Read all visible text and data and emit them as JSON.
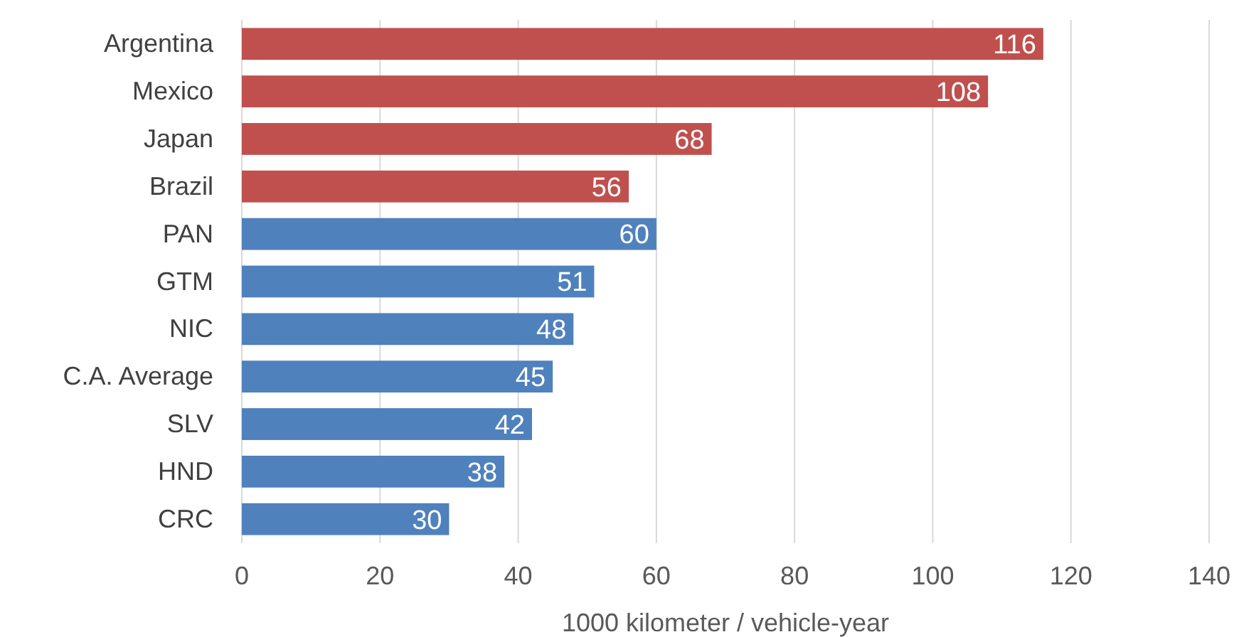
{
  "chart_data": {
    "type": "bar",
    "orientation": "horizontal",
    "xlabel": "1000 kilometer / vehicle-year",
    "categories": [
      "Argentina",
      "Mexico",
      "Japan",
      "Brazil",
      "PAN",
      "GTM",
      "NIC",
      "C.A. Average",
      "SLV",
      "HND",
      "CRC"
    ],
    "values": [
      116,
      108,
      68,
      56,
      60,
      51,
      48,
      45,
      42,
      38,
      30
    ],
    "colors": [
      "#c0504d",
      "#c0504d",
      "#c0504d",
      "#c0504d",
      "#4f81bd",
      "#4f81bd",
      "#4f81bd",
      "#4f81bd",
      "#4f81bd",
      "#4f81bd",
      "#4f81bd"
    ],
    "xlim": [
      0,
      140
    ],
    "xticks": [
      0,
      20,
      40,
      60,
      80,
      100,
      120,
      140
    ],
    "grid": "x",
    "data_labels": true
  }
}
